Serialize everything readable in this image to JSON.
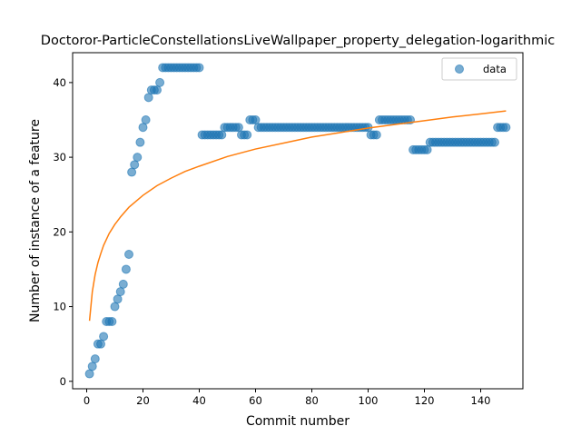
{
  "chart_data": {
    "type": "scatter",
    "title": "Doctoror-ParticleConstellationsLiveWallpaper_property_delegation-logarithmic",
    "xlabel": "Commit number",
    "ylabel": "Number of instance of a feature",
    "xlim": [
      -5,
      155
    ],
    "ylim": [
      -1,
      44
    ],
    "xticks": [
      0,
      20,
      40,
      60,
      80,
      100,
      120,
      140
    ],
    "yticks": [
      0,
      10,
      20,
      30,
      40
    ],
    "grid": false,
    "legend_position": "top-right",
    "colors": {
      "data": "#1f77b4",
      "fit": "#ff7f0e"
    },
    "series": [
      {
        "name": "data",
        "kind": "scatter",
        "x": [
          1,
          2,
          3,
          4,
          5,
          6,
          7,
          8,
          9,
          10,
          11,
          12,
          13,
          14,
          15,
          16,
          17,
          18,
          19,
          20,
          21,
          22,
          23,
          24,
          25,
          26,
          27,
          28,
          29,
          30,
          31,
          32,
          33,
          34,
          35,
          36,
          37,
          38,
          39,
          40,
          41,
          42,
          43,
          44,
          45,
          46,
          47,
          48,
          49,
          50,
          51,
          52,
          53,
          54,
          55,
          56,
          57,
          58,
          59,
          60,
          61,
          62,
          63,
          64,
          65,
          66,
          67,
          68,
          69,
          70,
          71,
          72,
          73,
          74,
          75,
          76,
          77,
          78,
          79,
          80,
          81,
          82,
          83,
          84,
          85,
          86,
          87,
          88,
          89,
          90,
          91,
          92,
          93,
          94,
          95,
          96,
          97,
          98,
          99,
          100,
          101,
          102,
          103,
          104,
          105,
          106,
          107,
          108,
          109,
          110,
          111,
          112,
          113,
          114,
          115,
          116,
          117,
          118,
          119,
          120,
          121,
          122,
          123,
          124,
          125,
          126,
          127,
          128,
          129,
          130,
          131,
          132,
          133,
          134,
          135,
          136,
          137,
          138,
          139,
          140,
          141,
          142,
          143,
          144,
          145,
          146,
          147,
          148,
          149
        ],
        "y": [
          1,
          2,
          3,
          5,
          5,
          6,
          8,
          8,
          8,
          10,
          11,
          12,
          13,
          15,
          17,
          28,
          29,
          30,
          32,
          34,
          35,
          38,
          39,
          39,
          39,
          40,
          42,
          42,
          42,
          42,
          42,
          42,
          42,
          42,
          42,
          42,
          42,
          42,
          42,
          42,
          33,
          33,
          33,
          33,
          33,
          33,
          33,
          33,
          34,
          34,
          34,
          34,
          34,
          34,
          33,
          33,
          33,
          35,
          35,
          35,
          34,
          34,
          34,
          34,
          34,
          34,
          34,
          34,
          34,
          34,
          34,
          34,
          34,
          34,
          34,
          34,
          34,
          34,
          34,
          34,
          34,
          34,
          34,
          34,
          34,
          34,
          34,
          34,
          34,
          34,
          34,
          34,
          34,
          34,
          34,
          34,
          34,
          34,
          34,
          34,
          33,
          33,
          33,
          35,
          35,
          35,
          35,
          35,
          35,
          35,
          35,
          35,
          35,
          35,
          35,
          31,
          31,
          31,
          31,
          31,
          31,
          32,
          32,
          32,
          32,
          32,
          32,
          32,
          32,
          32,
          32,
          32,
          32,
          32,
          32,
          32,
          32,
          32,
          32,
          32,
          32,
          32,
          32,
          32,
          32,
          34,
          34,
          34,
          34
        ]
      },
      {
        "name": "",
        "kind": "line",
        "x": [
          1,
          2,
          3,
          4,
          5,
          6,
          8,
          10,
          12,
          15,
          20,
          25,
          30,
          35,
          40,
          50,
          60,
          70,
          80,
          90,
          100,
          110,
          120,
          130,
          140,
          149
        ],
        "y": [
          8.1,
          12.0,
          14.3,
          15.9,
          17.1,
          18.2,
          19.8,
          21.0,
          22.0,
          23.3,
          24.9,
          26.2,
          27.2,
          28.1,
          28.8,
          30.1,
          31.1,
          31.9,
          32.7,
          33.3,
          33.9,
          34.4,
          34.9,
          35.4,
          35.8,
          36.2
        ]
      }
    ],
    "legend": [
      {
        "label": "data",
        "marker": "circle"
      }
    ]
  }
}
